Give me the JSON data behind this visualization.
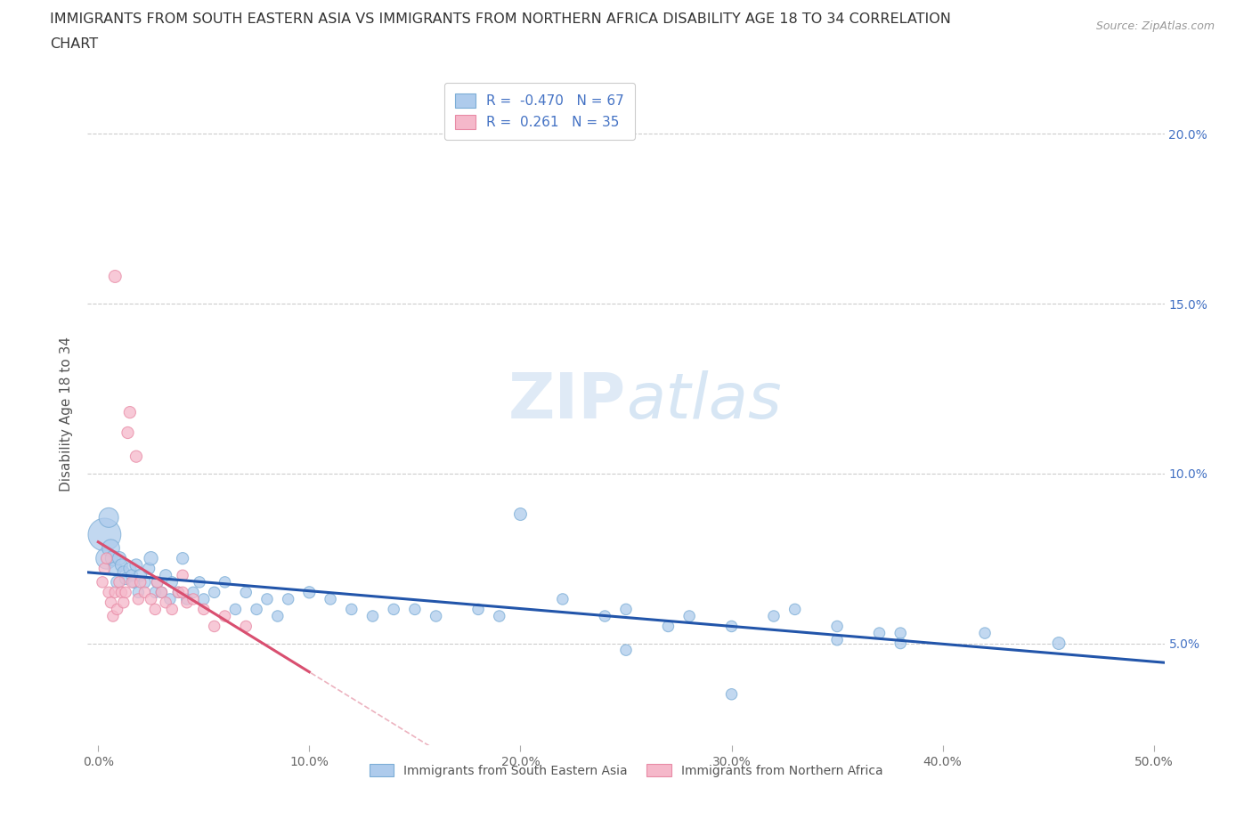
{
  "title_line1": "IMMIGRANTS FROM SOUTH EASTERN ASIA VS IMMIGRANTS FROM NORTHERN AFRICA DISABILITY AGE 18 TO 34 CORRELATION",
  "title_line2": "CHART",
  "source_text": "Source: ZipAtlas.com",
  "ylabel": "Disability Age 18 to 34",
  "xlim": [
    -0.005,
    0.505
  ],
  "ylim": [
    0.02,
    0.215
  ],
  "xticks": [
    0.0,
    0.1,
    0.2,
    0.3,
    0.4,
    0.5
  ],
  "xticklabels": [
    "0.0%",
    "10.0%",
    "20.0%",
    "30.0%",
    "40.0%",
    "50.0%"
  ],
  "yticks": [
    0.05,
    0.1,
    0.15,
    0.2
  ],
  "yticklabels": [
    "5.0%",
    "10.0%",
    "15.0%",
    "20.0%"
  ],
  "blue_color": "#aecbec",
  "blue_edge": "#7badd6",
  "pink_color": "#f5b8ca",
  "pink_edge": "#e88aa5",
  "blue_line_color": "#2255aa",
  "pink_line_color": "#d94f70",
  "pink_dash_color": "#e8a0b0",
  "tick_color": "#4472c4",
  "legend_text_color": "#4472c4",
  "R_blue": -0.47,
  "N_blue": 67,
  "R_pink": 0.261,
  "N_pink": 35,
  "legend_blue": "Immigrants from South Eastern Asia",
  "legend_pink": "Immigrants from Northern Africa",
  "blue_x": [
    0.003,
    0.004,
    0.005,
    0.006,
    0.007,
    0.008,
    0.009,
    0.01,
    0.011,
    0.012,
    0.013,
    0.015,
    0.016,
    0.017,
    0.018,
    0.019,
    0.02,
    0.022,
    0.024,
    0.025,
    0.027,
    0.028,
    0.03,
    0.032,
    0.034,
    0.035,
    0.038,
    0.04,
    0.042,
    0.045,
    0.048,
    0.05,
    0.055,
    0.06,
    0.065,
    0.07,
    0.075,
    0.08,
    0.085,
    0.09,
    0.1,
    0.11,
    0.12,
    0.13,
    0.14,
    0.15,
    0.16,
    0.18,
    0.19,
    0.2,
    0.22,
    0.24,
    0.25,
    0.27,
    0.28,
    0.3,
    0.32,
    0.33,
    0.35,
    0.37,
    0.38,
    0.42,
    0.455,
    0.25,
    0.3,
    0.35,
    0.38
  ],
  "blue_y": [
    0.082,
    0.075,
    0.087,
    0.078,
    0.075,
    0.072,
    0.068,
    0.075,
    0.073,
    0.071,
    0.069,
    0.072,
    0.07,
    0.068,
    0.073,
    0.065,
    0.07,
    0.068,
    0.072,
    0.075,
    0.065,
    0.068,
    0.065,
    0.07,
    0.063,
    0.068,
    0.065,
    0.075,
    0.063,
    0.065,
    0.068,
    0.063,
    0.065,
    0.068,
    0.06,
    0.065,
    0.06,
    0.063,
    0.058,
    0.063,
    0.065,
    0.063,
    0.06,
    0.058,
    0.06,
    0.06,
    0.058,
    0.06,
    0.058,
    0.088,
    0.063,
    0.058,
    0.06,
    0.055,
    0.058,
    0.055,
    0.058,
    0.06,
    0.055,
    0.053,
    0.05,
    0.053,
    0.05,
    0.048,
    0.035,
    0.051,
    0.053
  ],
  "blue_size": [
    700,
    300,
    250,
    200,
    150,
    120,
    100,
    120,
    100,
    90,
    90,
    100,
    90,
    90,
    100,
    80,
    100,
    90,
    90,
    120,
    80,
    90,
    80,
    90,
    80,
    80,
    80,
    90,
    80,
    80,
    80,
    80,
    80,
    80,
    80,
    80,
    80,
    80,
    80,
    80,
    90,
    80,
    80,
    80,
    80,
    80,
    80,
    80,
    80,
    100,
    80,
    80,
    80,
    80,
    80,
    80,
    80,
    80,
    80,
    80,
    80,
    80,
    100,
    80,
    80,
    80,
    80
  ],
  "pink_x": [
    0.002,
    0.003,
    0.004,
    0.005,
    0.006,
    0.007,
    0.008,
    0.009,
    0.01,
    0.011,
    0.012,
    0.013,
    0.014,
    0.015,
    0.016,
    0.018,
    0.019,
    0.02,
    0.022,
    0.025,
    0.027,
    0.028,
    0.03,
    0.032,
    0.035,
    0.038,
    0.04,
    0.042,
    0.045,
    0.05,
    0.055,
    0.06,
    0.07,
    0.008,
    0.04
  ],
  "pink_y": [
    0.068,
    0.072,
    0.075,
    0.065,
    0.062,
    0.058,
    0.065,
    0.06,
    0.068,
    0.065,
    0.062,
    0.065,
    0.112,
    0.118,
    0.068,
    0.105,
    0.063,
    0.068,
    0.065,
    0.063,
    0.06,
    0.068,
    0.065,
    0.062,
    0.06,
    0.065,
    0.07,
    0.062,
    0.063,
    0.06,
    0.055,
    0.058,
    0.055,
    0.158,
    0.065
  ],
  "pink_size": [
    80,
    80,
    80,
    80,
    80,
    80,
    80,
    80,
    80,
    80,
    80,
    80,
    90,
    90,
    80,
    90,
    80,
    80,
    80,
    80,
    80,
    80,
    80,
    80,
    80,
    80,
    80,
    80,
    80,
    80,
    80,
    80,
    80,
    100,
    80
  ]
}
